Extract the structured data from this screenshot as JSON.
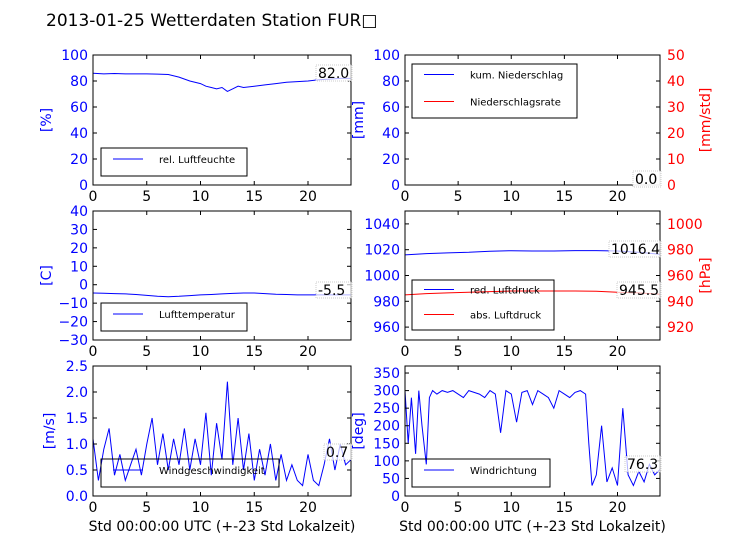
{
  "figure": {
    "title": "2013-01-25 Wetterdaten Station FUR□",
    "xlabel_bottom": "Std 00:00:00 UTC (+-23 Std Lokalzeit)"
  },
  "colors": {
    "left_axis": "#0000ff",
    "right_axis": "#ff0000",
    "frame": "#000000"
  },
  "chart_data": [
    {
      "id": "humidity",
      "type": "line",
      "xlim": [
        0,
        24
      ],
      "ylim": [
        0,
        100
      ],
      "xticks": [
        0,
        5,
        10,
        15,
        20
      ],
      "yticks": [
        0,
        20,
        40,
        60,
        80,
        100
      ],
      "ylabel": "[%]",
      "annotation": "82.0",
      "legend": [
        "rel. Luftfeuchte"
      ],
      "series": [
        {
          "name": "rel. Luftfeuchte",
          "color": "#0000ff",
          "x": [
            0,
            1,
            2,
            3,
            4,
            5,
            6,
            7,
            8,
            9,
            10,
            10.5,
            11,
            11.5,
            12,
            12.5,
            13,
            13.5,
            14,
            15,
            16,
            17,
            18,
            19,
            20,
            21,
            22,
            23,
            24
          ],
          "y": [
            86,
            85.5,
            85.8,
            85.5,
            85.5,
            85.5,
            85.3,
            85,
            83,
            80,
            78,
            76,
            75,
            74,
            75,
            72,
            74,
            76,
            75,
            76,
            77,
            78,
            79,
            79.5,
            80,
            81,
            81.5,
            82,
            82
          ]
        }
      ]
    },
    {
      "id": "precip",
      "type": "line",
      "xlim": [
        0,
        24
      ],
      "ylim": [
        0,
        100
      ],
      "ylim_right": [
        0,
        50
      ],
      "xticks": [
        0,
        5,
        10,
        15,
        20
      ],
      "yticks": [
        0,
        20,
        40,
        60,
        80,
        100
      ],
      "yticks_right": [
        0,
        10,
        20,
        30,
        40,
        50
      ],
      "ylabel": "[mm]",
      "ylabel_right": "[mm/std]",
      "annotation": "0.0",
      "annotation2": "0.0",
      "legend": [
        "kum. Niederschlag",
        "Niederschlagsrate"
      ],
      "series": [
        {
          "name": "kum. Niederschlag",
          "color": "#0000ff",
          "axis": "left",
          "x": [
            0,
            24
          ],
          "y": [
            0,
            0
          ]
        },
        {
          "name": "Niederschlagsrate",
          "color": "#ff0000",
          "axis": "right",
          "x": [
            0,
            24
          ],
          "y": [
            0,
            0
          ]
        }
      ]
    },
    {
      "id": "temperature",
      "type": "line",
      "xlim": [
        0,
        24
      ],
      "ylim": [
        -30,
        40
      ],
      "xticks": [
        0,
        5,
        10,
        15,
        20
      ],
      "yticks": [
        -30,
        -20,
        -10,
        0,
        10,
        20,
        30,
        40
      ],
      "ylabel": "[C]",
      "annotation": "-5.5",
      "legend": [
        "Lufttemperatur"
      ],
      "series": [
        {
          "name": "Lufttemperatur",
          "color": "#0000ff",
          "x": [
            0,
            1,
            2,
            3,
            4,
            5,
            6,
            7,
            8,
            9,
            10,
            11,
            12,
            13,
            14,
            15,
            16,
            17,
            18,
            19,
            20,
            21,
            22,
            23,
            24
          ],
          "y": [
            -4.5,
            -4.6,
            -4.8,
            -5,
            -5.3,
            -5.8,
            -6.3,
            -6.5,
            -6.3,
            -5.9,
            -5.5,
            -5.3,
            -5,
            -4.7,
            -4.5,
            -4.5,
            -4.8,
            -5.2,
            -5.3,
            -5.5,
            -5.5,
            -5.5,
            -5.4,
            -5.5,
            -5.5
          ]
        }
      ]
    },
    {
      "id": "pressure",
      "type": "line",
      "xlim": [
        0,
        24
      ],
      "ylim": [
        950,
        1050
      ],
      "ylim_right": [
        910,
        1010
      ],
      "xticks": [
        0,
        5,
        10,
        15,
        20
      ],
      "yticks": [
        960,
        980,
        1000,
        1020,
        1040
      ],
      "yticks_right": [
        920,
        940,
        960,
        980,
        1000
      ],
      "ylabel_right": "[hPa]",
      "annotation": "1016.4",
      "annotation2": "945.5",
      "legend": [
        "red. Luftdruck",
        "abs. Luftdruck"
      ],
      "series": [
        {
          "name": "red. Luftdruck",
          "color": "#0000ff",
          "axis": "left",
          "x": [
            0,
            2,
            4,
            6,
            8,
            10,
            12,
            14,
            16,
            18,
            20,
            22,
            24
          ],
          "y": [
            1016,
            1017,
            1017.5,
            1018,
            1018.8,
            1019.2,
            1019,
            1019,
            1019.3,
            1019.3,
            1019,
            1018,
            1016.4
          ]
        },
        {
          "name": "abs. Luftdruck",
          "color": "#ff0000",
          "axis": "right",
          "x": [
            0,
            2,
            4,
            6,
            8,
            10,
            12,
            14,
            16,
            18,
            20,
            22,
            24
          ],
          "y": [
            945,
            946,
            946.5,
            947,
            947.5,
            948,
            948,
            948,
            948,
            947.8,
            947,
            946.5,
            945.5
          ]
        }
      ]
    },
    {
      "id": "windspeed",
      "type": "line",
      "xlim": [
        0,
        24
      ],
      "ylim": [
        0,
        2.5
      ],
      "xticks": [
        0,
        5,
        10,
        15,
        20
      ],
      "yticks": [
        0.0,
        0.5,
        1.0,
        1.5,
        2.0,
        2.5
      ],
      "ylabel": "[m/s]",
      "xlabel": "Std 00:00:00 UTC (+-23 Std Lokalzeit)",
      "annotation": "0.7",
      "legend": [
        "Windgeschwindigkeit"
      ],
      "series": [
        {
          "name": "Windgeschwindigkeit",
          "color": "#0000ff",
          "x": [
            0,
            0.5,
            1,
            1.5,
            2,
            2.5,
            3,
            3.5,
            4,
            4.5,
            5,
            5.5,
            6,
            6.5,
            7,
            7.5,
            8,
            8.5,
            9,
            9.5,
            10,
            10.5,
            11,
            11.5,
            12,
            12.5,
            13,
            13.5,
            14,
            14.5,
            15,
            15.5,
            16,
            16.5,
            17,
            17.5,
            18,
            18.5,
            19,
            19.5,
            20,
            20.5,
            21,
            21.5,
            22,
            22.5,
            23,
            23.5,
            24
          ],
          "y": [
            1.1,
            0.3,
            0.9,
            1.3,
            0.4,
            0.8,
            0.3,
            0.6,
            0.9,
            0.4,
            1.0,
            1.5,
            0.6,
            1.2,
            0.5,
            1.1,
            0.6,
            1.3,
            0.5,
            1.1,
            0.6,
            1.6,
            0.4,
            1.4,
            0.7,
            2.2,
            0.6,
            1.5,
            0.5,
            1.2,
            0.3,
            0.9,
            0.4,
            1.0,
            0.3,
            0.8,
            0.3,
            0.6,
            0.3,
            0.2,
            0.8,
            0.3,
            0.2,
            0.6,
            1.1,
            0.5,
            1.0,
            0.6,
            0.7
          ]
        }
      ]
    },
    {
      "id": "winddir",
      "type": "line",
      "xlim": [
        0,
        24
      ],
      "ylim": [
        0,
        370
      ],
      "xticks": [
        0,
        5,
        10,
        15,
        20
      ],
      "yticks": [
        0,
        50,
        100,
        150,
        200,
        250,
        300,
        350
      ],
      "ylabel": "[deg]",
      "xlabel": "Std 00:00:00 UTC (+-23 Std Lokalzeit)",
      "annotation": "76.3",
      "legend": [
        "Windrichtung"
      ],
      "series": [
        {
          "name": "Windrichtung",
          "color": "#0000ff",
          "x": [
            0,
            0.3,
            0.6,
            1,
            1.3,
            1.6,
            2,
            2.3,
            2.6,
            3,
            3.5,
            4,
            4.5,
            5,
            5.5,
            6,
            6.5,
            7,
            7.5,
            8,
            8.5,
            9,
            9.5,
            10,
            10.5,
            11,
            11.5,
            12,
            12.5,
            13,
            13.5,
            14,
            14.5,
            15,
            15.5,
            16,
            16.5,
            17,
            17.3,
            17.6,
            18,
            18.5,
            19,
            19.5,
            20,
            20.5,
            21,
            21.5,
            22,
            22.5,
            23,
            23.5,
            24
          ],
          "y": [
            300,
            150,
            280,
            120,
            300,
            200,
            90,
            280,
            300,
            290,
            300,
            295,
            300,
            290,
            280,
            300,
            295,
            290,
            280,
            300,
            290,
            180,
            300,
            290,
            210,
            295,
            300,
            260,
            300,
            290,
            280,
            250,
            300,
            290,
            280,
            295,
            300,
            290,
            150,
            30,
            60,
            200,
            40,
            80,
            30,
            250,
            60,
            30,
            70,
            40,
            90,
            60,
            76
          ]
        }
      ]
    }
  ]
}
